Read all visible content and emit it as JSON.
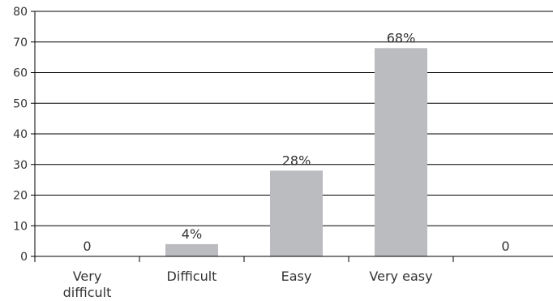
{
  "chart_data": {
    "type": "bar",
    "categories": [
      [
        "Very",
        "difficult"
      ],
      [
        "Difficult"
      ],
      [
        "Easy"
      ],
      [
        "Very easy"
      ],
      [
        ""
      ]
    ],
    "values": [
      0,
      4,
      28,
      68,
      0
    ],
    "data_labels": [
      "0",
      "4%",
      "28%",
      "68%",
      "0"
    ],
    "yticks": [
      0,
      10,
      20,
      30,
      40,
      50,
      60,
      70,
      80
    ],
    "ylim": [
      0,
      80
    ],
    "grid": true,
    "legend": "none",
    "bar_color": "#bbbcbf",
    "grid_color": "#000000"
  }
}
